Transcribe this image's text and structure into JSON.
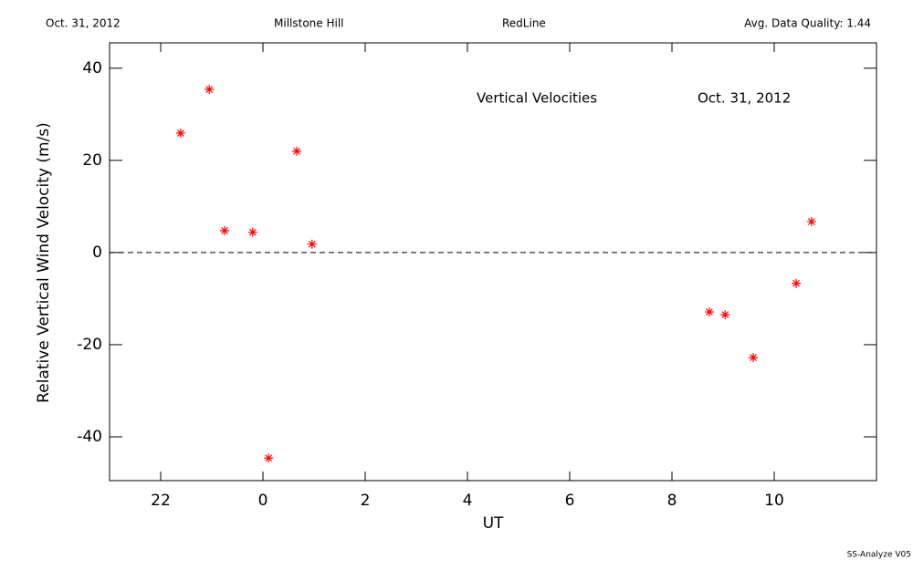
{
  "header": {
    "date": "Oct. 31, 2012",
    "site": "Millstone Hill",
    "filter": "RedLine",
    "quality": "Avg. Data Quality: 1.44"
  },
  "footer": "SS-Analyze V05",
  "chart_data": {
    "type": "scatter",
    "title": "Vertical Velocities",
    "annotation": "Oct. 31, 2012",
    "x_label": "UT",
    "y_label": "Relative Vertical Wind Velocity (m/s)",
    "x": [
      -1.61,
      -1.05,
      -0.75,
      -0.2,
      0.11,
      0.66,
      0.96,
      8.73,
      9.04,
      9.59,
      10.43,
      10.73
    ],
    "values": [
      25.9,
      35.4,
      4.75,
      4.4,
      -44.6,
      22.0,
      1.8,
      -12.9,
      -13.5,
      -22.8,
      -6.7,
      6.7
    ],
    "color": "#ff0000",
    "xlim": [
      -3,
      12
    ],
    "xticks": [
      {
        "value": -2,
        "label": "22"
      },
      0,
      2,
      4,
      6,
      8,
      10
    ],
    "ylim": [
      -49.5,
      45.5
    ],
    "yticks": [
      -40,
      -20,
      0,
      20,
      40
    ],
    "reference_line": 0
  }
}
